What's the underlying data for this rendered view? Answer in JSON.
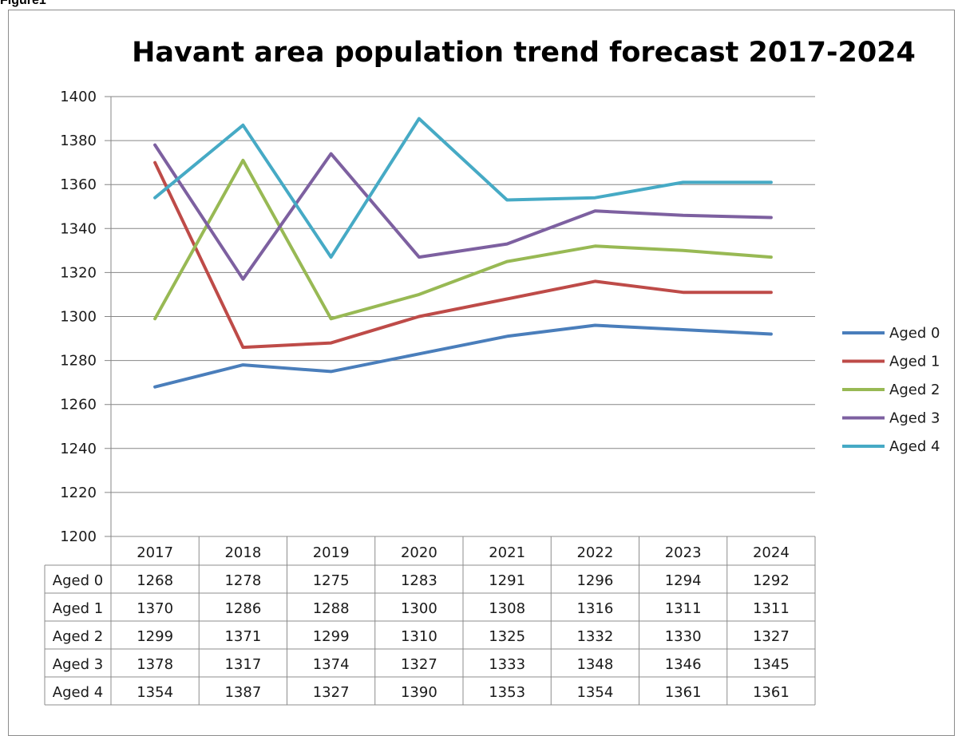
{
  "figure_label": "Figure1",
  "chart_data": {
    "type": "line",
    "title": "Havant area population trend forecast 2017-2024",
    "xlabel": "",
    "ylabel": "",
    "categories": [
      "2017",
      "2018",
      "2019",
      "2020",
      "2021",
      "2022",
      "2023",
      "2024"
    ],
    "ylim": [
      1200,
      1400
    ],
    "yticks": [
      1200,
      1220,
      1240,
      1260,
      1280,
      1300,
      1320,
      1340,
      1360,
      1380,
      1400
    ],
    "grid": true,
    "legend_position": "right",
    "data_table": true,
    "series": [
      {
        "name": "Aged 0",
        "color": "#4a7ebb",
        "values": [
          1268,
          1278,
          1275,
          1283,
          1291,
          1296,
          1294,
          1292
        ]
      },
      {
        "name": "Aged 1",
        "color": "#be4b48",
        "values": [
          1370,
          1286,
          1288,
          1300,
          1308,
          1316,
          1311,
          1311
        ]
      },
      {
        "name": "Aged 2",
        "color": "#98b954",
        "values": [
          1299,
          1371,
          1299,
          1310,
          1325,
          1332,
          1330,
          1327
        ]
      },
      {
        "name": "Aged 3",
        "color": "#7d60a0",
        "values": [
          1378,
          1317,
          1374,
          1327,
          1333,
          1348,
          1346,
          1345
        ]
      },
      {
        "name": "Aged 4",
        "color": "#46aac5",
        "values": [
          1354,
          1387,
          1327,
          1390,
          1353,
          1354,
          1361,
          1361
        ]
      }
    ]
  }
}
